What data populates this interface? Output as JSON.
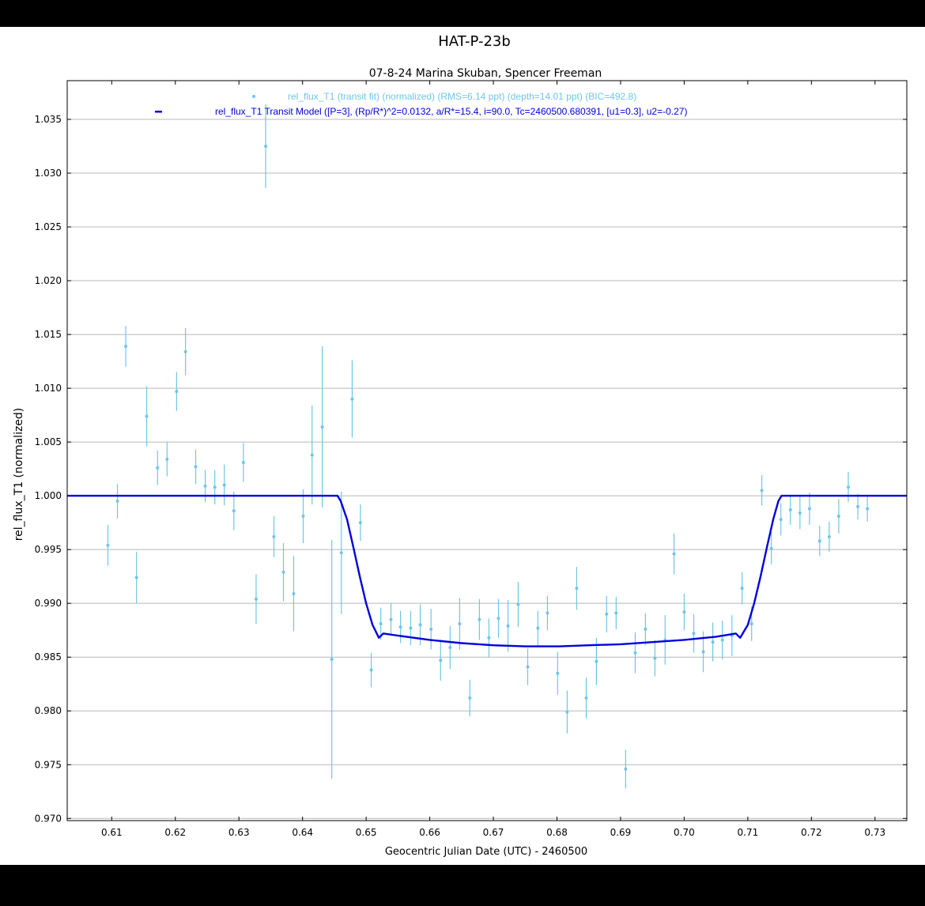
{
  "chart_data": {
    "type": "scatter",
    "title": "HAT-P-23b",
    "subtitle": "07-8-24 Marina Skuban, Spencer Freeman",
    "xlabel": "Geocentric Julian Date (UTC) - 2460500",
    "ylabel": "rel_flux_T1 (normalized)",
    "xlim": [
      0.603,
      0.735
    ],
    "ylim": [
      0.9698,
      1.0386
    ],
    "x_ticks": [
      0.61,
      0.62,
      0.63,
      0.64,
      0.65,
      0.66,
      0.67,
      0.68,
      0.69,
      0.7,
      0.71,
      0.72,
      0.73
    ],
    "x_tick_labels": [
      "0.61",
      "0.62",
      "0.63",
      "0.64",
      "0.65",
      "0.66",
      "0.67",
      "0.68",
      "0.69",
      "0.70",
      "0.71",
      "0.72",
      "0.73"
    ],
    "y_ticks": [
      0.97,
      0.975,
      0.98,
      0.985,
      0.99,
      0.995,
      1.0,
      1.005,
      1.01,
      1.015,
      1.02,
      1.025,
      1.03,
      1.035
    ],
    "y_tick_labels": [
      "0.970",
      "0.975",
      "0.980",
      "0.985",
      "0.990",
      "0.995",
      "1.000",
      "1.005",
      "1.010",
      "1.015",
      "1.020",
      "1.025",
      "1.030",
      "1.035"
    ],
    "grid": "horizontal",
    "legend_position": "top-center",
    "colors": {
      "data": "#6ec6e8",
      "model": "#0000dd"
    },
    "series": [
      {
        "name": "rel_flux_T1 (transit fit) (normalized) (RMS=6.14 ppt) (depth=14.01 ppt) (BIC=492.8)",
        "kind": "points_with_errorbars",
        "x": [
          0.6094,
          0.6109,
          0.6122,
          0.6139,
          0.6155,
          0.6172,
          0.6187,
          0.6202,
          0.6216,
          0.6232,
          0.6247,
          0.6262,
          0.6277,
          0.6292,
          0.6307,
          0.6327,
          0.6342,
          0.6355,
          0.637,
          0.6386,
          0.6401,
          0.6415,
          0.6431,
          0.6446,
          0.6461,
          0.6478,
          0.6491,
          0.6508,
          0.6523,
          0.6539,
          0.6554,
          0.657,
          0.6585,
          0.6602,
          0.6617,
          0.6632,
          0.6647,
          0.6663,
          0.6678,
          0.6693,
          0.6708,
          0.6723,
          0.6739,
          0.6754,
          0.677,
          0.6785,
          0.6801,
          0.6816,
          0.6831,
          0.6846,
          0.6862,
          0.6878,
          0.6893,
          0.6908,
          0.6923,
          0.6939,
          0.6954,
          0.697,
          0.6984,
          0.7,
          0.7015,
          0.703,
          0.7045,
          0.706,
          0.7075,
          0.7091,
          0.7106,
          0.7122,
          0.7137,
          0.7152,
          0.7167,
          0.7182,
          0.7197,
          0.7213,
          0.7228,
          0.7243,
          0.7258,
          0.7273,
          0.7288
        ],
        "y": [
          0.9954,
          0.9995,
          1.0139,
          0.9924,
          1.0074,
          1.0026,
          1.0034,
          1.0097,
          1.0134,
          1.0027,
          1.0009,
          1.0008,
          1.001,
          0.9986,
          1.0031,
          0.9904,
          1.0325,
          0.9962,
          0.9929,
          0.9909,
          0.9981,
          1.0038,
          1.0064,
          0.9848,
          0.9947,
          1.009,
          0.9975,
          0.9838,
          0.9881,
          0.9885,
          0.9878,
          0.9877,
          0.988,
          0.9876,
          0.9847,
          0.9859,
          0.9881,
          0.9812,
          0.9885,
          0.9868,
          0.9886,
          0.9879,
          0.9899,
          0.9841,
          0.9877,
          0.9891,
          0.9835,
          0.9799,
          0.9914,
          0.9812,
          0.9846,
          0.989,
          0.9891,
          0.9746,
          0.9854,
          0.9876,
          0.9849,
          0.9866,
          0.9946,
          0.9892,
          0.9872,
          0.9855,
          0.9864,
          0.9866,
          0.987,
          0.9914,
          0.9881,
          1.0005,
          0.9951,
          0.9978,
          0.9987,
          0.9984,
          0.9988,
          0.9958,
          0.9962,
          0.9981,
          1.0008,
          0.999,
          0.9988
        ],
        "err": [
          0.0019,
          0.0016,
          0.0019,
          0.0024,
          0.0028,
          0.0016,
          0.0016,
          0.0018,
          0.0022,
          0.0016,
          0.0015,
          0.0016,
          0.0019,
          0.0018,
          0.0018,
          0.0023,
          0.0039,
          0.0019,
          0.0027,
          0.0035,
          0.0025,
          0.0046,
          0.0075,
          0.0111,
          0.0057,
          0.0036,
          0.0017,
          0.0016,
          0.0015,
          0.0015,
          0.0015,
          0.0016,
          0.0019,
          0.0019,
          0.0019,
          0.002,
          0.0024,
          0.0017,
          0.0019,
          0.0018,
          0.0018,
          0.0024,
          0.0021,
          0.0017,
          0.0016,
          0.0016,
          0.002,
          0.002,
          0.002,
          0.0019,
          0.0022,
          0.0017,
          0.0015,
          0.0018,
          0.0019,
          0.0015,
          0.0017,
          0.0023,
          0.0019,
          0.0017,
          0.0018,
          0.0019,
          0.0018,
          0.0018,
          0.0019,
          0.0015,
          0.0016,
          0.0014,
          0.0015,
          0.0015,
          0.0014,
          0.0015,
          0.0015,
          0.0014,
          0.0014,
          0.0016,
          0.0014,
          0.0012,
          0.0012
        ]
      },
      {
        "name": "rel_flux_T1 Transit Model ([P=3], (Rp/R*)^2=0.0132, a/R*=15.4, i=90.0, Tc=2460500.680391, [u1=0.3], u2=-0.27)",
        "kind": "line",
        "x": [
          0.603,
          0.6455,
          0.646,
          0.647,
          0.648,
          0.649,
          0.65,
          0.651,
          0.652,
          0.6527,
          0.655,
          0.66,
          0.665,
          0.67,
          0.675,
          0.6804,
          0.685,
          0.69,
          0.695,
          0.7,
          0.705,
          0.7081,
          0.7088,
          0.71,
          0.711,
          0.712,
          0.713,
          0.714,
          0.7148,
          0.7153,
          0.735
        ],
        "y": [
          1.0,
          1.0,
          0.9995,
          0.9978,
          0.9952,
          0.9925,
          0.99,
          0.988,
          0.9868,
          0.9872,
          0.987,
          0.9866,
          0.9863,
          0.9861,
          0.986,
          0.986,
          0.9861,
          0.9862,
          0.9864,
          0.9866,
          0.9869,
          0.9872,
          0.9868,
          0.988,
          0.99,
          0.9925,
          0.9952,
          0.9978,
          0.9995,
          1.0,
          1.0
        ]
      }
    ]
  }
}
